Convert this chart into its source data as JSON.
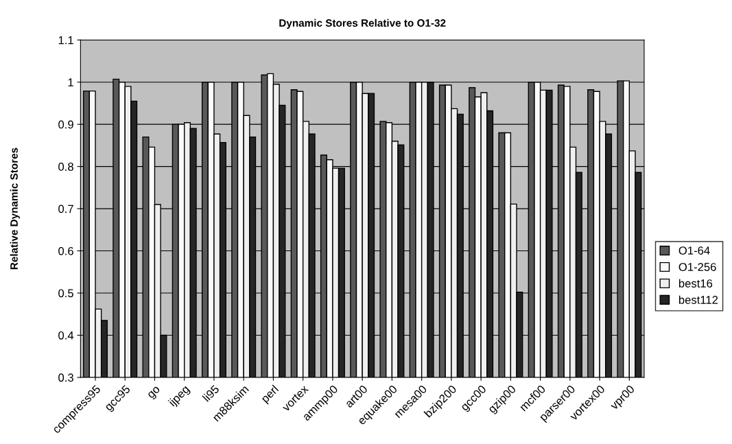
{
  "chart_data": {
    "type": "bar",
    "title": "Dynamic Stores Relative to O1-32",
    "ylabel": "Relative Dynamic Stores",
    "categories": [
      "compress95",
      "gcc95",
      "go",
      "ijpeg",
      "li95",
      "m88ksim",
      "perl",
      "vortex",
      "ammp00",
      "art00",
      "equake00",
      "mesa00",
      "bzip200",
      "gcc00",
      "gzip00",
      "mcf00",
      "parser00",
      "vortex00",
      "vpr00"
    ],
    "series": [
      {
        "name": "O1-64",
        "color": "#595959",
        "values": [
          0.979,
          1.007,
          0.87,
          0.9,
          1.0,
          1.0,
          1.017,
          0.982,
          0.827,
          1.0,
          0.907,
          1.0,
          0.993,
          0.987,
          0.88,
          1.0,
          0.993,
          0.982,
          1.003
        ]
      },
      {
        "name": "O1-256",
        "color": "#fafafa",
        "values": [
          0.979,
          1.0,
          0.846,
          0.9,
          1.0,
          1.0,
          1.02,
          0.978,
          0.816,
          1.0,
          0.904,
          1.0,
          0.993,
          0.965,
          0.88,
          1.0,
          0.99,
          0.978,
          1.003
        ]
      },
      {
        "name": "best16",
        "color": "#efefef",
        "values": [
          0.462,
          0.99,
          0.71,
          0.904,
          0.877,
          0.921,
          0.995,
          0.907,
          0.796,
          0.973,
          0.86,
          1.0,
          0.937,
          0.975,
          0.711,
          0.981,
          0.846,
          0.907,
          0.837
        ]
      },
      {
        "name": "best112",
        "color": "#262626",
        "values": [
          0.435,
          0.955,
          0.4,
          0.89,
          0.857,
          0.87,
          0.945,
          0.877,
          0.796,
          0.973,
          0.851,
          1.0,
          0.924,
          0.932,
          0.502,
          0.981,
          0.786,
          0.877,
          0.786
        ]
      }
    ],
    "ylim": [
      0.3,
      1.1
    ],
    "yticks": [
      0.3,
      0.4,
      0.5,
      0.6,
      0.7,
      0.8,
      0.9,
      1,
      1.1
    ],
    "grid": "y",
    "legend": "right"
  }
}
